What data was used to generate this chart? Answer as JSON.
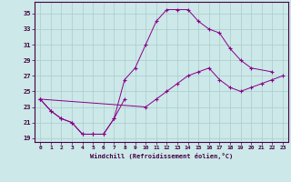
{
  "xlabel": "Windchill (Refroidissement éolien,°C)",
  "bg_color": "#cce8e8",
  "line_color": "#880088",
  "grid_color": "#b8d8d8",
  "xlim": [
    -0.5,
    23.5
  ],
  "ylim": [
    18.5,
    36.5
  ],
  "yticks": [
    19,
    21,
    23,
    25,
    27,
    29,
    31,
    33,
    35
  ],
  "xticks": [
    0,
    1,
    2,
    3,
    4,
    5,
    6,
    7,
    8,
    9,
    10,
    11,
    12,
    13,
    14,
    15,
    16,
    17,
    18,
    19,
    20,
    21,
    22,
    23
  ],
  "hours": [
    0,
    1,
    2,
    3,
    4,
    5,
    6,
    7,
    8,
    9,
    10,
    11,
    12,
    13,
    14,
    15,
    16,
    17,
    18,
    19,
    20,
    21,
    22,
    23
  ],
  "line1": [
    24.0,
    22.5,
    21.5,
    21.0,
    19.5,
    19.5,
    19.5,
    21.5,
    24.0,
    null,
    null,
    null,
    null,
    null,
    null,
    null,
    null,
    null,
    null,
    null,
    null,
    null,
    null,
    null
  ],
  "line2": [
    24.0,
    22.5,
    21.5,
    21.0,
    19.5,
    19.5,
    19.5,
    21.5,
    26.5,
    28.0,
    31.0,
    34.0,
    35.5,
    35.5,
    35.5,
    34.0,
    33.0,
    32.5,
    30.5,
    29.0,
    28.0,
    null,
    27.5,
    null
  ],
  "line3": [
    24.0,
    null,
    null,
    null,
    null,
    null,
    null,
    null,
    null,
    null,
    23.0,
    24.0,
    25.0,
    26.0,
    27.0,
    27.5,
    28.0,
    26.5,
    25.5,
    25.0,
    25.5,
    26.0,
    26.5,
    27.0
  ]
}
